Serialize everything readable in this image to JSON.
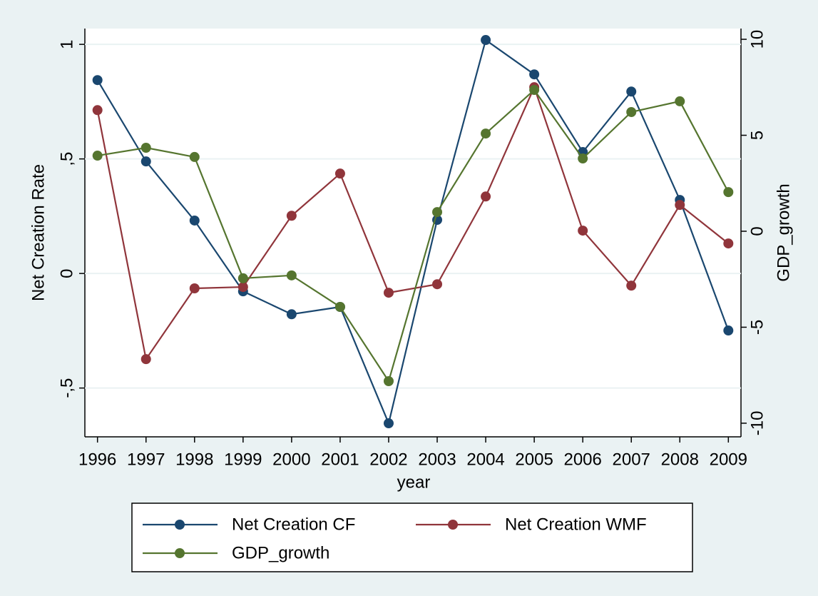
{
  "chart_data": {
    "type": "line",
    "x": [
      1996,
      1997,
      1998,
      1999,
      2000,
      2001,
      2002,
      2003,
      2004,
      2005,
      2006,
      2007,
      2008,
      2009
    ],
    "xlim": [
      1995.74,
      2009.26
    ],
    "xticks": [
      1996,
      1997,
      1998,
      1999,
      2000,
      2001,
      2002,
      2003,
      2004,
      2005,
      2006,
      2007,
      2008,
      2009
    ],
    "xlabel": "year",
    "ylabel": "Net Creation Rate",
    "y2label": "GDP_growth",
    "ylim": [
      -0.713,
      1.069
    ],
    "yticks": [
      {
        "value": -0.5,
        "label": "-,5"
      },
      0,
      {
        "value": 0.5,
        "label": ",5"
      },
      1
    ],
    "y2lim": [
      -10.71,
      10.56
    ],
    "y2ticks": [
      -10,
      -5,
      0,
      5,
      10
    ],
    "grid": true,
    "legend": "bottom",
    "series": [
      {
        "name": "Net Creation CF",
        "color": "#1a476f",
        "values": [
          0.844,
          0.489,
          0.231,
          -0.078,
          -0.178,
          -0.146,
          -0.654,
          0.234,
          1.019,
          0.869,
          0.53,
          0.794,
          0.321,
          -0.249
        ]
      },
      {
        "name": "Net Creation WMF",
        "color": "#90353b",
        "values": [
          0.713,
          -0.374,
          -0.065,
          -0.059,
          0.252,
          0.436,
          -0.084,
          -0.047,
          0.336,
          0.813,
          0.187,
          -0.053,
          0.299,
          0.131
        ]
      },
      {
        "name": "GDP_growth",
        "color": "#55752f",
        "axis": "y2",
        "values": [
          3.94,
          4.35,
          3.87,
          -2.45,
          -2.3,
          -3.94,
          -7.81,
          1.0,
          5.09,
          7.36,
          3.79,
          6.21,
          6.77,
          2.04
        ]
      }
    ]
  }
}
